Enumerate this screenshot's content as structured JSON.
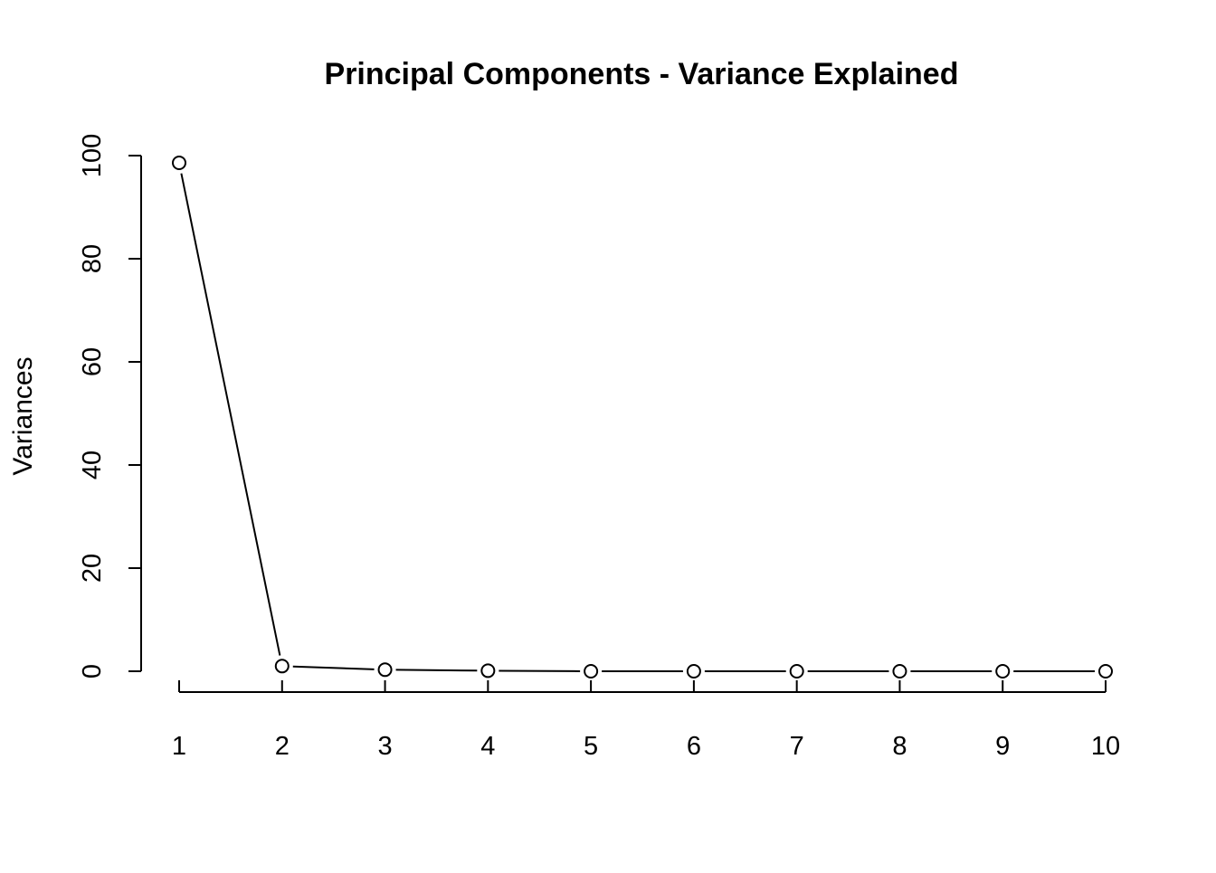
{
  "chart_data": {
    "type": "line",
    "title": "Principal Components - Variance Explained",
    "xlabel": "",
    "ylabel": "Variances",
    "x": [
      1,
      2,
      3,
      4,
      5,
      6,
      7,
      8,
      9,
      10
    ],
    "series": [
      {
        "values": [
          98.6,
          1.0,
          0.3,
          0.1,
          0.0,
          0.0,
          0.0,
          0.0,
          0.0,
          0.0
        ]
      }
    ],
    "x_ticks": [
      "1",
      "2",
      "3",
      "4",
      "5",
      "6",
      "7",
      "8",
      "9",
      "10"
    ],
    "y_ticks": [
      "0",
      "20",
      "40",
      "60",
      "80",
      "100"
    ],
    "xlim": [
      1,
      10
    ],
    "ylim": [
      0,
      100
    ],
    "grid": false,
    "legend": "none",
    "marker": "open-circle",
    "colors": {
      "line": "#000000",
      "marker_fill": "#ffffff",
      "background": "#ffffff"
    }
  }
}
